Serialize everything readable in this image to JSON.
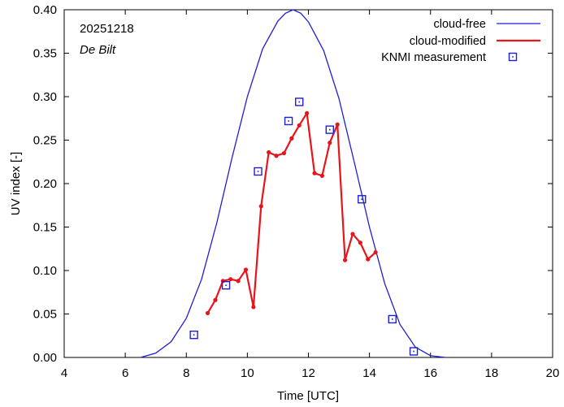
{
  "chart_data": {
    "type": "line",
    "date_label": "20251218",
    "location_label": "De Bilt",
    "xlabel": "Time  [UTC]",
    "ylabel": "UV index  [-]",
    "xlim": [
      4,
      20
    ],
    "ylim": [
      0,
      0.4
    ],
    "xticks": [
      4,
      6,
      8,
      10,
      12,
      14,
      16,
      18,
      20
    ],
    "yticks": [
      0.0,
      0.05,
      0.1,
      0.15,
      0.2,
      0.25,
      0.3,
      0.35,
      0.4
    ],
    "xtick_labels": [
      "4",
      "6",
      "8",
      "10",
      "12",
      "14",
      "16",
      "18",
      "20"
    ],
    "ytick_labels": [
      "0.00",
      "0.05",
      "0.10",
      "0.15",
      "0.20",
      "0.25",
      "0.30",
      "0.35",
      "0.40"
    ],
    "grid": false,
    "legend_position": "top-right",
    "colors": {
      "cloud_free": "#1f1fd6",
      "cloud_modified": "#e8141c",
      "measurement": "#1f1fd6"
    },
    "series": [
      {
        "name": "cloud-free",
        "kind": "line",
        "x": [
          6.5,
          7.0,
          7.5,
          8.0,
          8.5,
          9.0,
          9.5,
          10.0,
          10.5,
          11.0,
          11.25,
          11.5,
          11.75,
          12.0,
          12.5,
          13.0,
          13.5,
          14.0,
          14.5,
          15.0,
          15.5,
          16.0,
          16.5
        ],
        "y": [
          0.0,
          0.005,
          0.018,
          0.045,
          0.09,
          0.155,
          0.23,
          0.3,
          0.355,
          0.387,
          0.396,
          0.4,
          0.396,
          0.386,
          0.353,
          0.298,
          0.225,
          0.15,
          0.085,
          0.038,
          0.012,
          0.002,
          0.0
        ]
      },
      {
        "name": "cloud-modified",
        "kind": "line-markers",
        "x": [
          8.7,
          8.95,
          9.2,
          9.45,
          9.7,
          9.95,
          10.2,
          10.45,
          10.7,
          10.95,
          11.2,
          11.45,
          11.7,
          11.95,
          12.2,
          12.45,
          12.7,
          12.95,
          13.2,
          13.45,
          13.7,
          13.95,
          14.2
        ],
        "y": [
          0.051,
          0.066,
          0.088,
          0.09,
          0.088,
          0.101,
          0.058,
          0.174,
          0.236,
          0.232,
          0.235,
          0.252,
          0.267,
          0.281,
          0.212,
          0.209,
          0.247,
          0.268,
          0.112,
          0.142,
          0.132,
          0.113,
          0.121
        ]
      },
      {
        "name": "KNMI measurement",
        "kind": "markers",
        "x": [
          8.25,
          9.3,
          10.35,
          11.35,
          11.7,
          12.7,
          13.75,
          14.75,
          15.45
        ],
        "y": [
          0.026,
          0.083,
          0.214,
          0.272,
          0.294,
          0.262,
          0.182,
          0.044,
          0.007
        ]
      }
    ]
  }
}
